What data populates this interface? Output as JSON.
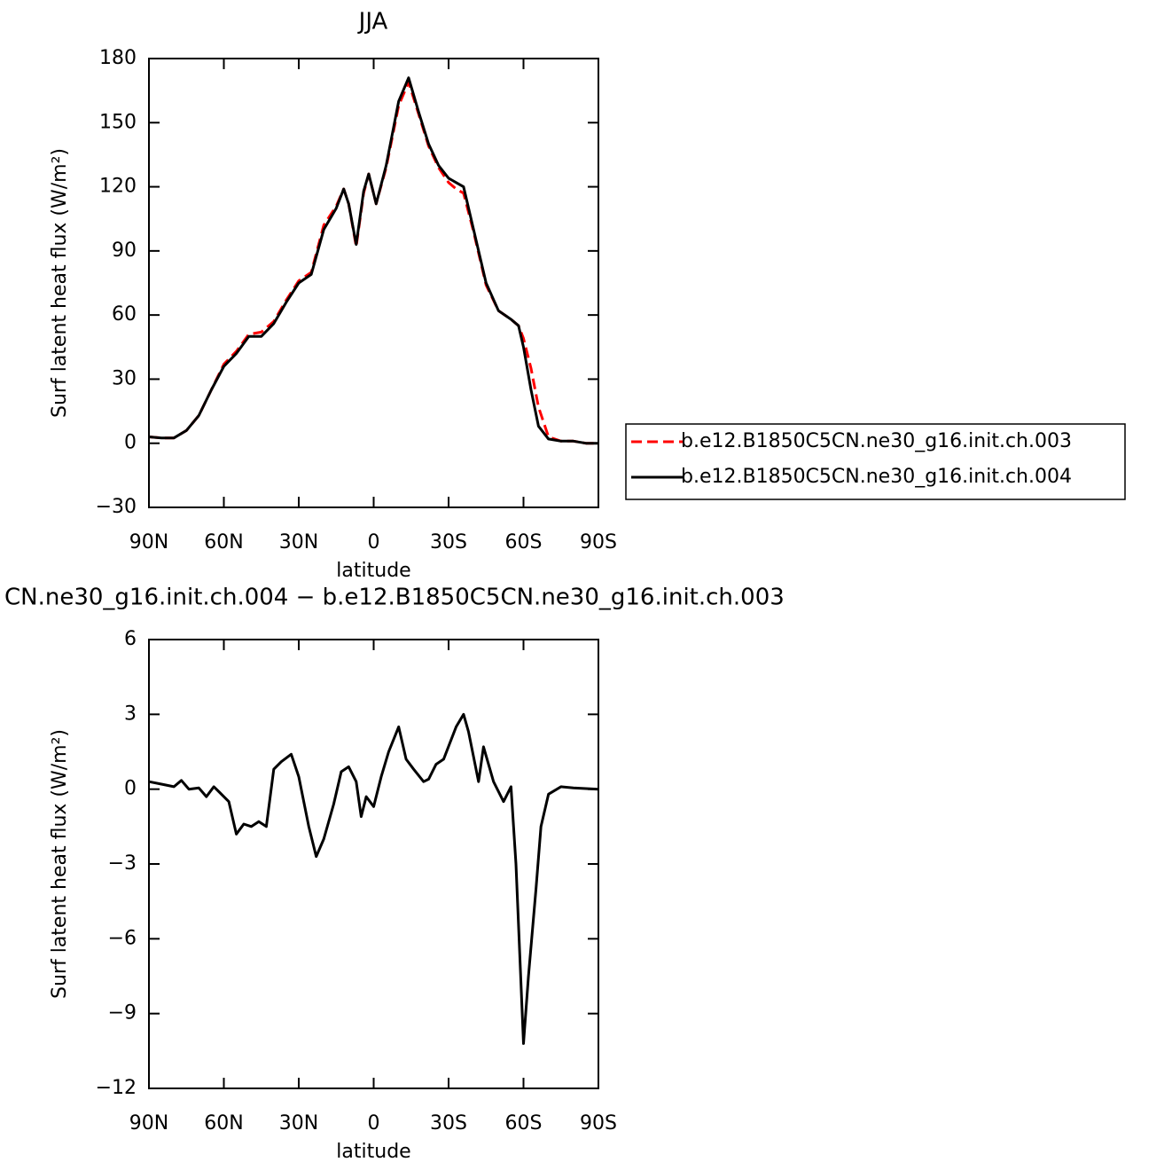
{
  "chart_data": [
    {
      "type": "line",
      "title": "JJA",
      "x_label": "latitude",
      "y_label": "Surf latent heat flux (W/m²)",
      "x": [
        90,
        85,
        80,
        75,
        70,
        65,
        60,
        55,
        50,
        45,
        40,
        35,
        30,
        25,
        20,
        15,
        12,
        10,
        7,
        4,
        2,
        -1,
        -5,
        -10,
        -14,
        -18,
        -22,
        -26,
        -30,
        -33,
        -36,
        -40,
        -45,
        -50,
        -55,
        -58,
        -60,
        -63,
        -66,
        -70,
        -75,
        -80,
        -85,
        -90
      ],
      "series": [
        {
          "name": "b.e12.B1850C5CN.ne30_g16.init.ch.003",
          "color": "#ff0000",
          "dash": true,
          "values": [
            3,
            2.5,
            2.5,
            6,
            13,
            25,
            37,
            43,
            51,
            52,
            57,
            67,
            76,
            80,
            102,
            111,
            119,
            112,
            92,
            117,
            126,
            112,
            129,
            158,
            169,
            154,
            139,
            129,
            122,
            119,
            117,
            99,
            74,
            62,
            58,
            55,
            49,
            35,
            17,
            3,
            1,
            1,
            0,
            0
          ]
        },
        {
          "name": "b.e12.B1850C5CN.ne30_g16.init.ch.004",
          "color": "#000000",
          "dash": false,
          "values": [
            3,
            2.5,
            2.5,
            6,
            13,
            25,
            36,
            42,
            50,
            50,
            56,
            66,
            75,
            79,
            100,
            110,
            119,
            112,
            93,
            118,
            126,
            112,
            130,
            160,
            171,
            155,
            140,
            130,
            124,
            122,
            120,
            100,
            75,
            62,
            58,
            55,
            45,
            25,
            8,
            2,
            1,
            1,
            0,
            0
          ]
        }
      ],
      "xlim": [
        90,
        -90
      ],
      "xticks": [
        {
          "value": 90,
          "label": "90N"
        },
        {
          "value": 60,
          "label": "60N"
        },
        {
          "value": 30,
          "label": "30N"
        },
        0,
        {
          "value": -30,
          "label": "30S"
        },
        {
          "value": -60,
          "label": "60S"
        },
        {
          "value": -90,
          "label": "90S"
        }
      ],
      "ylim": [
        -30,
        180
      ],
      "yticks": [
        {
          "value": -30,
          "label": "−30"
        },
        0,
        30,
        60,
        90,
        120,
        150,
        180
      ]
    },
    {
      "type": "line",
      "title": "CN.ne30_g16.init.ch.004 − b.e12.B1850C5CN.ne30_g16.init.ch.003",
      "x_label": "latitude",
      "y_label": "Surf latent heat flux (W/m²)",
      "x": [
        90,
        85,
        80,
        77,
        74,
        70,
        67,
        64,
        62,
        58,
        55,
        52,
        49,
        46,
        43,
        40,
        37,
        33,
        30,
        26,
        23,
        20,
        16,
        13,
        10,
        7,
        5,
        3,
        0,
        -3,
        -6,
        -10,
        -13,
        -16,
        -20,
        -22,
        -25,
        -28,
        -33,
        -36,
        -38,
        -42,
        -44,
        -48,
        -52,
        -55,
        -57,
        -60,
        -62,
        -65,
        -67,
        -70,
        -75,
        -80,
        -90
      ],
      "series": [
        {
          "color": "#000000",
          "dash": false,
          "values": [
            0.3,
            0.2,
            0.1,
            0.35,
            0,
            0.05,
            -0.3,
            0.1,
            -0.1,
            -0.5,
            -1.8,
            -1.4,
            -1.5,
            -1.3,
            -1.5,
            0.8,
            1.1,
            1.4,
            0.5,
            -1.5,
            -2.7,
            -2,
            -0.6,
            0.7,
            0.9,
            0.3,
            -1.1,
            -0.3,
            -0.7,
            0.5,
            1.5,
            2.5,
            1.2,
            0.8,
            0.3,
            0.4,
            1,
            1.2,
            2.5,
            3,
            2.3,
            0.3,
            1.7,
            0.3,
            -0.5,
            0.1,
            -3,
            -10.2,
            -7.5,
            -4,
            -1.5,
            -0.2,
            0.1,
            0.05,
            0
          ]
        }
      ],
      "xlim": [
        90,
        -90
      ],
      "xticks": [
        {
          "value": 90,
          "label": "90N"
        },
        {
          "value": 60,
          "label": "60N"
        },
        {
          "value": 30,
          "label": "30N"
        },
        0,
        {
          "value": -30,
          "label": "30S"
        },
        {
          "value": -60,
          "label": "60S"
        },
        {
          "value": -90,
          "label": "90S"
        }
      ],
      "ylim": [
        -12,
        6
      ],
      "yticks": [
        {
          "value": -12,
          "label": "−12"
        },
        {
          "value": -9,
          "label": "−9"
        },
        {
          "value": -6,
          "label": "−6"
        },
        {
          "value": -3,
          "label": "−3"
        },
        0,
        3,
        6
      ]
    }
  ]
}
